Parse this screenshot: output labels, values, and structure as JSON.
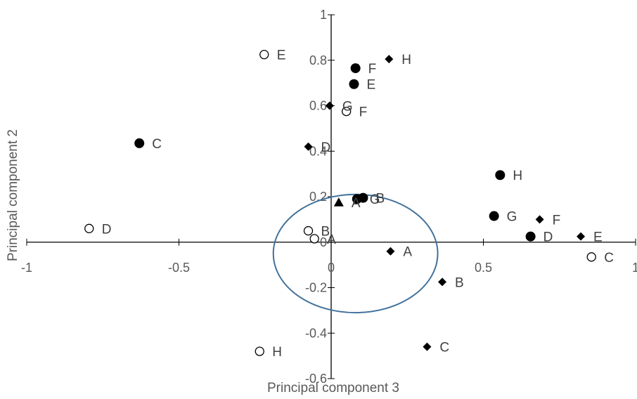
{
  "chart_data": {
    "type": "scatter",
    "title": "",
    "xlabel": "Principal component 3",
    "ylabel": "Principal component 2",
    "xlim": [
      -1,
      1
    ],
    "ylim": [
      -0.6,
      1
    ],
    "x_ticks": [
      -1,
      -0.5,
      0,
      0.5,
      1
    ],
    "y_ticks": [
      -0.6,
      -0.4,
      -0.2,
      0,
      0.2,
      0.4,
      0.6,
      0.8,
      1
    ],
    "x_tick_labels": [
      "-1",
      "-0.5",
      "0",
      "0.5",
      "1"
    ],
    "y_tick_labels": [
      "-0.6",
      "-0.4",
      "-0.2",
      "0",
      "0.2",
      "0.4",
      "0.6",
      "0.8",
      "1"
    ],
    "grid": false,
    "legend": "none",
    "colors": {
      "marker": "#000000",
      "ellipse": "#41719c",
      "axis": "#000000",
      "text": "#595959"
    },
    "series": [
      {
        "marker": "filled-circle",
        "points": [
          {
            "x": 0.08,
            "y": 0.765,
            "label": "F"
          },
          {
            "x": 0.075,
            "y": 0.695,
            "label": "E"
          },
          {
            "x": -0.63,
            "y": 0.435,
            "label": "C"
          },
          {
            "x": 0.555,
            "y": 0.295,
            "label": "H"
          },
          {
            "x": 0.085,
            "y": 0.19,
            "label": "G"
          },
          {
            "x": 0.105,
            "y": 0.195,
            "label": "B"
          },
          {
            "x": 0.535,
            "y": 0.115,
            "label": "G"
          },
          {
            "x": 0.655,
            "y": 0.025,
            "label": "D"
          }
        ]
      },
      {
        "marker": "open-circle",
        "points": [
          {
            "x": -0.22,
            "y": 0.825,
            "label": "E"
          },
          {
            "x": 0.05,
            "y": 0.575,
            "label": "F"
          },
          {
            "x": -0.795,
            "y": 0.06,
            "label": "D"
          },
          {
            "x": -0.075,
            "y": 0.05,
            "label": "B"
          },
          {
            "x": -0.055,
            "y": 0.015,
            "label": "A"
          },
          {
            "x": 0.855,
            "y": -0.065,
            "label": "C"
          },
          {
            "x": -0.235,
            "y": -0.48,
            "label": "H"
          }
        ]
      },
      {
        "marker": "filled-diamond",
        "points": [
          {
            "x": 0.19,
            "y": 0.805,
            "label": "H"
          },
          {
            "x": -0.005,
            "y": 0.6,
            "label": "G"
          },
          {
            "x": -0.075,
            "y": 0.42,
            "label": "D"
          },
          {
            "x": 0.195,
            "y": -0.04,
            "label": "A"
          },
          {
            "x": 0.365,
            "y": -0.175,
            "label": "B"
          },
          {
            "x": 0.315,
            "y": -0.46,
            "label": "C"
          },
          {
            "x": 0.685,
            "y": 0.1,
            "label": "F"
          },
          {
            "x": 0.82,
            "y": 0.025,
            "label": "E"
          }
        ]
      },
      {
        "marker": "filled-triangle",
        "points": [
          {
            "x": 0.025,
            "y": 0.175,
            "label": "A"
          }
        ]
      }
    ],
    "annotations": [
      {
        "type": "ellipse",
        "cx": 0.08,
        "cy": -0.05,
        "rx": 0.27,
        "ry": 0.26
      }
    ]
  }
}
